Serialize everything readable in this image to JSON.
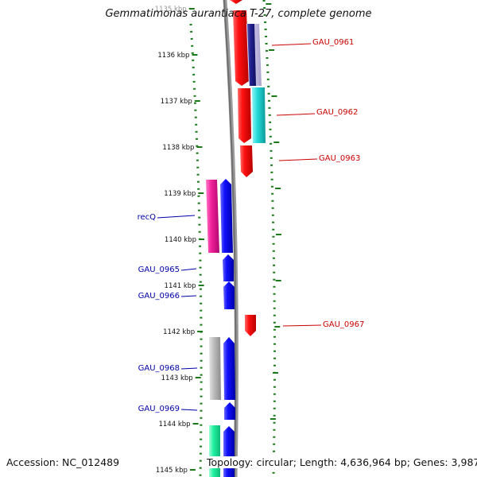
{
  "title": "Gemmatimonas aurantiaca T-27, complete genome",
  "footer": {
    "accession": "Accession: NC_012489",
    "topology": "Topology: circular; Length: 4,636,964 bp; Genes: 3,987"
  },
  "colors": {
    "reverse_label": "#cc0000",
    "forward_label": "#0000aa",
    "tick": "#1a7a1a",
    "backbone": "#777777"
  },
  "axis": {
    "unit": "kbp",
    "ticks": [
      "1135 kbp",
      "1136 kbp",
      "1137 kbp",
      "1138 kbp",
      "1139 kbp",
      "1140 kbp",
      "1141 kbp",
      "1142 kbp",
      "1143 kbp",
      "1144 kbp",
      "1145 kbp"
    ]
  },
  "genes": [
    {
      "label": "GAU_0961",
      "strand": "reverse"
    },
    {
      "label": "GAU_0962",
      "strand": "reverse"
    },
    {
      "label": "GAU_0963",
      "strand": "reverse"
    },
    {
      "label": "recQ",
      "strand": "forward"
    },
    {
      "label": "GAU_0965",
      "strand": "forward"
    },
    {
      "label": "GAU_0966",
      "strand": "forward"
    },
    {
      "label": "GAU_0967",
      "strand": "reverse"
    },
    {
      "label": "GAU_0968",
      "strand": "forward"
    },
    {
      "label": "GAU_0969",
      "strand": "forward"
    }
  ]
}
